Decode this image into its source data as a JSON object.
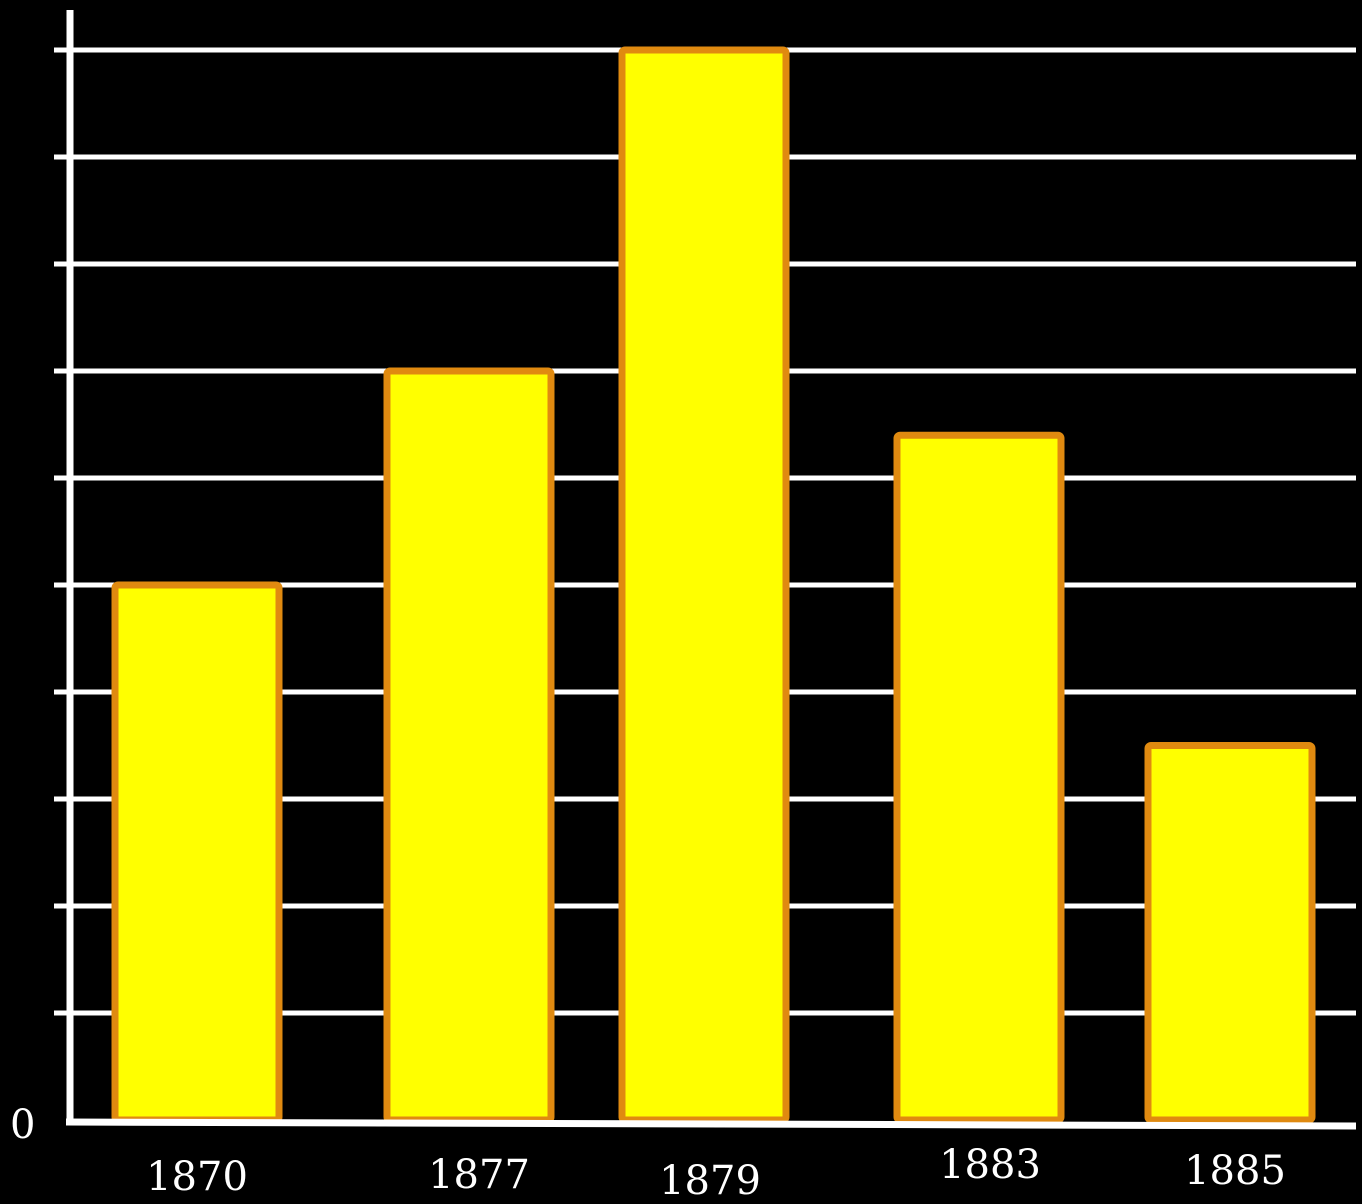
{
  "chart_data": {
    "type": "bar",
    "categories": [
      "1870",
      "1877",
      "1879",
      "1883",
      "1885"
    ],
    "values": [
      50,
      70,
      100,
      64,
      35
    ],
    "ylim": [
      0,
      100
    ],
    "y_tick_labels": [
      "0"
    ],
    "gridlines": 10,
    "grid": true,
    "title": "",
    "xlabel": "",
    "ylabel": "",
    "colors": {
      "background": "#000000",
      "bar_fill": "#ffff00",
      "bar_stroke": "#e08a10",
      "axis": "#ffffff",
      "grid": "#ffffff",
      "text": "#ffffff"
    }
  }
}
